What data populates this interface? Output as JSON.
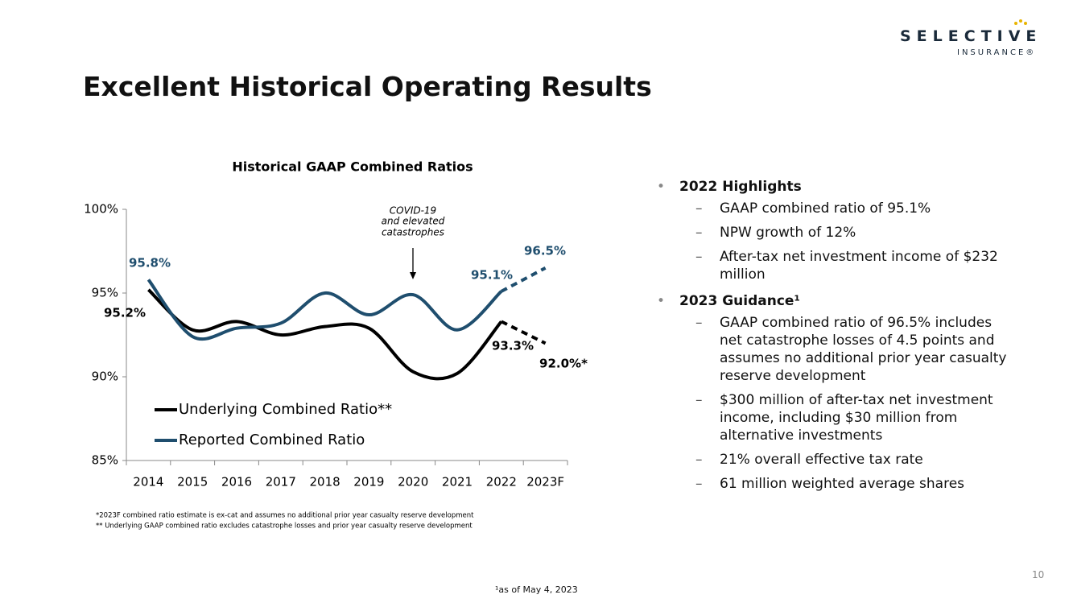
{
  "logo": {
    "name": "SELECTIVE",
    "sub": "INSURANCE®"
  },
  "title": "Excellent Historical Operating Results",
  "chart_data": {
    "type": "line",
    "title": "Historical GAAP Combined Ratios",
    "categories": [
      "2014",
      "2015",
      "2016",
      "2017",
      "2018",
      "2019",
      "2020",
      "2021",
      "2022",
      "2023F"
    ],
    "series": [
      {
        "name": "Underlying Combined Ratio**",
        "color": "#000000",
        "values": [
          95.2,
          92.8,
          93.3,
          92.5,
          93.0,
          92.9,
          90.3,
          90.2,
          93.3,
          92.0
        ],
        "value_labels": [
          "95.2%",
          null,
          null,
          null,
          null,
          null,
          null,
          null,
          "93.3%",
          "92.0%*"
        ]
      },
      {
        "name": "Reported Combined Ratio",
        "color": "#1f4e6e",
        "values": [
          95.8,
          92.4,
          92.9,
          93.2,
          95.0,
          93.7,
          94.9,
          92.8,
          95.1,
          96.5
        ],
        "value_labels": [
          "95.8%",
          null,
          null,
          null,
          null,
          null,
          null,
          null,
          "95.1%",
          "96.5%"
        ]
      }
    ],
    "dashed_from": 8,
    "ylim": [
      85,
      100
    ],
    "yticks": [
      {
        "value": 85,
        "label": "85%"
      },
      {
        "value": 90,
        "label": "90%"
      },
      {
        "value": 95,
        "label": "95%"
      },
      {
        "value": 100,
        "label": "100%"
      }
    ],
    "annotation": [
      "COVID-19",
      "and elevated",
      "catastrophes"
    ],
    "notes": [
      "*2023F combined ratio estimate is ex-cat and assumes no additional prior year casualty reserve development",
      "** Underlying GAAP combined ratio excludes catastrophe losses and prior year casualty reserve development"
    ]
  },
  "bullets": [
    {
      "heading": "2022 Highlights",
      "items": [
        "GAAP combined ratio of 95.1%",
        "NPW growth of 12%",
        "After-tax net investment income of $232 million"
      ]
    },
    {
      "heading": "2023 Guidance¹",
      "items": [
        "GAAP combined ratio of 96.5% includes net catastrophe losses of 4.5 points and assumes no additional prior year casualty reserve development",
        "$300 million of after-tax net investment income, including $30 million from alternative investments",
        "21% overall effective tax rate",
        "61 million weighted average shares"
      ]
    }
  ],
  "page_number": "10",
  "footnote": "¹as of May 4, 2023"
}
